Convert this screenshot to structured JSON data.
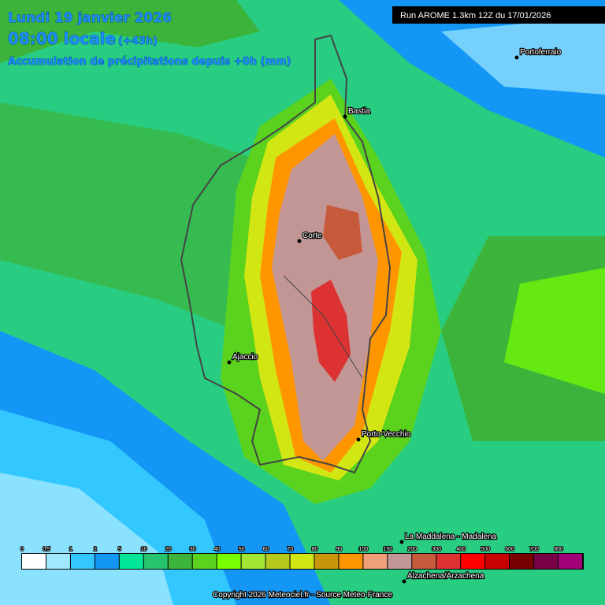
{
  "header": {
    "date": "Lundi 19 janvier 2026",
    "time": "08:00 locale",
    "offset": "(+43h)",
    "subtitle": "Accumulation de précipitations depuis +0h (mm)"
  },
  "run": "Run AROME 1.3km 12Z du 17/01/2026",
  "cities": [
    {
      "name": "Portoferraio"
    },
    {
      "name": "Bastia"
    },
    {
      "name": "Corte"
    },
    {
      "name": "Ajaccio"
    },
    {
      "name": "Porto-Vecchio"
    },
    {
      "name": "La Maddalena - Madalena"
    },
    {
      "name": "Alzachena/Arzachena"
    }
  ],
  "legend": [
    {
      "label": "0",
      "color": "#ffffff"
    },
    {
      "label": "0.5",
      "color": "#a0e8ff"
    },
    {
      "label": "1",
      "color": "#32c8ff"
    },
    {
      "label": "2",
      "color": "#1496f5"
    },
    {
      "label": "5",
      "color": "#00e696"
    },
    {
      "label": "10",
      "color": "#28c36e"
    },
    {
      "label": "20",
      "color": "#3cb43c"
    },
    {
      "label": "30",
      "color": "#5ad21e"
    },
    {
      "label": "40",
      "color": "#78ff00"
    },
    {
      "label": "50",
      "color": "#a0e632"
    },
    {
      "label": "60",
      "color": "#b4c81e"
    },
    {
      "label": "70",
      "color": "#d2e614"
    },
    {
      "label": "80",
      "color": "#c8960a"
    },
    {
      "label": "90",
      "color": "#ff9600"
    },
    {
      "label": "100",
      "color": "#f0a078"
    },
    {
      "label": "150",
      "color": "#c39696"
    },
    {
      "label": "200",
      "color": "#c85a3c"
    },
    {
      "label": "300",
      "color": "#dc3232"
    },
    {
      "label": "400",
      "color": "#ff0000"
    },
    {
      "label": "500",
      "color": "#c80000"
    },
    {
      "label": "600",
      "color": "#780000"
    },
    {
      "label": "700",
      "color": "#780046"
    },
    {
      "label": "800",
      "color": "#a00078"
    }
  ],
  "copyright": "Copyright 2026 Meteociel.fr - Source Meteo-France"
}
